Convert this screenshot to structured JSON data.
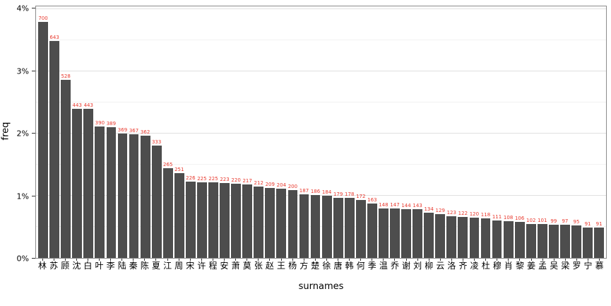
{
  "chart_data": {
    "type": "bar",
    "title": "",
    "xlabel": "surnames",
    "ylabel": "freq",
    "ylim": [
      0,
      4.05
    ],
    "grid": true,
    "legend": "none",
    "bar_color": "#4d4d4d",
    "label_color": "#e8392e",
    "y_ticks": [
      {
        "label": "0%",
        "value": 0
      },
      {
        "label": "1%",
        "value": 1
      },
      {
        "label": "2%",
        "value": 2
      },
      {
        "label": "3%",
        "value": 3
      },
      {
        "label": "4%",
        "value": 4
      }
    ],
    "y_minor": [
      0.5,
      1.5,
      2.5,
      3.5
    ],
    "categories": [
      "林",
      "苏",
      "顾",
      "沈",
      "白",
      "叶",
      "李",
      "陆",
      "秦",
      "陈",
      "夏",
      "江",
      "周",
      "宋",
      "许",
      "程",
      "安",
      "萧",
      "莫",
      "张",
      "赵",
      "王",
      "杨",
      "方",
      "楚",
      "徐",
      "唐",
      "韩",
      "何",
      "季",
      "温",
      "乔",
      "谢",
      "刘",
      "柳",
      "云",
      "洛",
      "齐",
      "凌",
      "杜",
      "穆",
      "肖",
      "黎",
      "姜",
      "孟",
      "吴",
      "梁",
      "罗",
      "宁",
      "慕"
    ],
    "values": [
      700,
      643,
      528,
      443,
      443,
      390,
      389,
      369,
      367,
      362,
      333,
      265,
      251,
      226,
      225,
      225,
      223,
      220,
      217,
      212,
      209,
      204,
      200,
      187,
      186,
      184,
      179,
      178,
      172,
      163,
      148,
      147,
      144,
      143,
      134,
      129,
      123,
      122,
      120,
      118,
      111,
      108,
      106,
      102,
      101,
      99,
      97,
      95,
      91,
      91
    ],
    "freq_percent": [
      3.8,
      3.49,
      2.87,
      2.4,
      2.4,
      2.12,
      2.11,
      2.0,
      1.99,
      1.97,
      1.81,
      1.44,
      1.36,
      1.23,
      1.22,
      1.22,
      1.21,
      1.19,
      1.18,
      1.15,
      1.13,
      1.11,
      1.09,
      1.02,
      1.01,
      1.0,
      0.97,
      0.97,
      0.93,
      0.88,
      0.8,
      0.8,
      0.78,
      0.78,
      0.73,
      0.7,
      0.67,
      0.66,
      0.65,
      0.64,
      0.6,
      0.59,
      0.58,
      0.55,
      0.55,
      0.54,
      0.53,
      0.52,
      0.49,
      0.49
    ]
  }
}
